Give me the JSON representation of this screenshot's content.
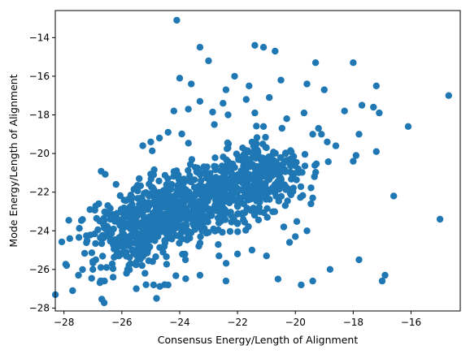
{
  "chart_data": {
    "type": "scatter",
    "title": "",
    "xlabel": "Consensus Energy/Length of Alignment",
    "ylabel": "Mode Energy/Length of Alignment",
    "xlim": [
      -28.3,
      -14.3
    ],
    "ylim": [
      -28.15,
      -12.6
    ],
    "xticks": [
      -28,
      -26,
      -24,
      -22,
      -20,
      -18,
      -16
    ],
    "yticks": [
      -28,
      -26,
      -24,
      -22,
      -20,
      -18,
      -16,
      -14
    ],
    "grid": false,
    "legend": "none",
    "point_color": "#1f77b4",
    "series": [
      {
        "x": [
          -24.1,
          -23.3,
          -21.4,
          -21.1,
          -20.7,
          -23.6,
          -19.3,
          -18.0,
          -23.0,
          -17.2,
          -14.7,
          -22.1,
          -21.6,
          -24.0,
          -22.4,
          -20.5,
          -19.6,
          -19.0,
          -17.3,
          -18.3,
          -16.1,
          -25.0,
          -24.7,
          -24.4,
          -20.9,
          -21.7,
          -23.3,
          -24.2,
          -22.5,
          -19.7,
          -23.7,
          -17.1,
          -19.2,
          -19.4,
          -21.1,
          -20.3,
          -22.8,
          -26.2,
          -25.4,
          -24.9,
          -17.7,
          -19.1,
          -18.9,
          -18.6,
          -17.8,
          -17.9,
          -17.2,
          -16.6,
          -27.7,
          -27.5,
          -27.0,
          -26.6,
          -26.3,
          -25.8,
          -25.3,
          -26.9,
          -26.1,
          -25.7,
          -25.2,
          -23.3,
          -22.4,
          -20.6,
          -19.8,
          -19.4,
          -18.8,
          -17.8,
          -16.9,
          -17.0,
          -15.0,
          -21.0,
          -22.0,
          -21.5,
          -20.2,
          -20.0,
          -23.8,
          -24.9,
          -25.5,
          -26.5,
          -27.2,
          -27.8,
          -26.0,
          -24.4,
          -19.6,
          -20.4,
          -18.0,
          -19.9,
          -20.1,
          -20.7,
          -19.4,
          -27.1,
          -26.8,
          -26.0,
          -25.5,
          -24.8,
          -25.1
        ],
        "y": [
          -13.1,
          -14.5,
          -14.4,
          -14.5,
          -14.7,
          -16.4,
          -15.3,
          -15.3,
          -15.2,
          -16.5,
          -17.0,
          -16.0,
          -16.5,
          -16.1,
          -16.7,
          -16.2,
          -16.4,
          -16.7,
          -17.6,
          -17.8,
          -18.6,
          -19.4,
          -19.2,
          -18.9,
          -17.1,
          -17.2,
          -17.3,
          -17.8,
          -17.4,
          -17.9,
          -17.7,
          -17.9,
          -18.7,
          -19.0,
          -18.6,
          -18.2,
          -18.5,
          -21.6,
          -21.3,
          -21.1,
          -17.5,
          -19.0,
          -19.4,
          -19.6,
          -19.0,
          -20.1,
          -19.9,
          -22.2,
          -27.1,
          -26.3,
          -26.0,
          -26.6,
          -26.4,
          -26.0,
          -25.8,
          -25.5,
          -25.3,
          -25.7,
          -26.2,
          -26.3,
          -26.6,
          -26.5,
          -26.8,
          -26.6,
          -26.0,
          -25.5,
          -26.3,
          -26.6,
          -23.4,
          -25.3,
          -25.2,
          -25.0,
          -24.6,
          -24.3,
          -25.5,
          -26.8,
          -27.0,
          -24.2,
          -24.5,
          -24.4,
          -24.6,
          -26.8,
          -24.0,
          -23.8,
          -20.4,
          -20.8,
          -21.2,
          -21.6,
          -22.3,
          -22.9,
          -22.6,
          -22.9,
          -23.2,
          -27.5,
          -25.0
        ]
      }
    ],
    "note_generated_cloud": "dense cluster along a positive trend from about (-26,-24) to (-21,-21)"
  }
}
